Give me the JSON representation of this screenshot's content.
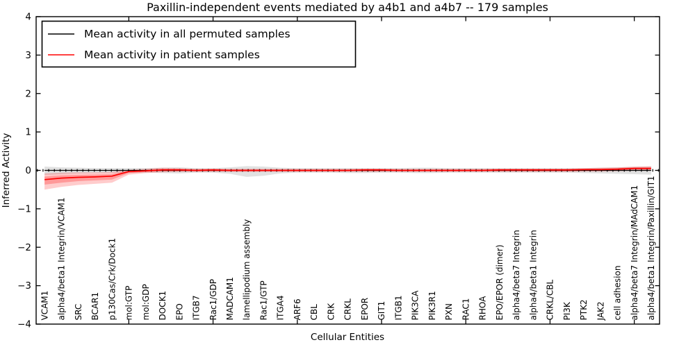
{
  "chart_data": {
    "type": "line",
    "title": "Paxillin-independent events mediated by a4b1 and a4b7 -- 179 samples",
    "xlabel": "Cellular Entities",
    "ylabel": "Inferred Activity",
    "ylim": [
      -4,
      4
    ],
    "yticks": [
      4,
      3,
      2,
      1,
      0,
      -1,
      -2,
      -3,
      -4
    ],
    "grid": false,
    "zero_line": true,
    "legend_position": "upper left",
    "categories": [
      "VCAM1",
      "alpha4/beta1 Integrin/VCAM1",
      "SRC",
      "BCAR1",
      "p130Cas/Crk/Dock1",
      "mol:GTP",
      "mol:GDP",
      "DOCK1",
      "EPO",
      "ITGB7",
      "Rac1/GDP",
      "MADCAM1",
      "lamellipodium assembly",
      "Rac1/GTP",
      "ITGA4",
      "ARF6",
      "CBL",
      "CRK",
      "CRKL",
      "EPOR",
      "GIT1",
      "ITGB1",
      "PIK3CA",
      "PIK3R1",
      "PXN",
      "RAC1",
      "RHOA",
      "EPO/EPOR (dimer)",
      "alpha4/beta7 Integrin",
      "alpha4/beta1 Integrin",
      "CRKL/CBL",
      "PI3K",
      "PTK2",
      "JAK2",
      "cell adhesion",
      "alpha4/beta7 Integrin/MAdCAM1",
      "alpha4/beta1 Integrin/Paxillin/GIT1"
    ],
    "series": [
      {
        "name": "Mean activity in all permuted samples",
        "color": "#000000",
        "values": [
          0,
          0,
          0,
          0,
          0,
          0,
          0,
          0,
          0,
          0,
          0,
          0,
          0,
          0,
          0,
          0,
          0,
          0,
          0,
          0,
          0,
          0,
          0,
          0,
          0,
          0,
          0,
          0,
          0,
          0,
          0,
          0,
          0,
          0,
          0,
          0,
          0
        ]
      },
      {
        "name": "Mean activity in patient samples",
        "color": "#ff0000",
        "values": [
          -0.24,
          -0.2,
          -0.18,
          -0.17,
          -0.15,
          -0.03,
          -0.01,
          0.01,
          0.01,
          0.0,
          0.01,
          0.0,
          0.0,
          0.0,
          0.0,
          0.0,
          0.0,
          0.0,
          0.0,
          0.01,
          0.01,
          0.0,
          0.0,
          0.0,
          0.0,
          0.0,
          0.0,
          0.01,
          0.01,
          0.01,
          0.01,
          0.01,
          0.02,
          0.02,
          0.03,
          0.05,
          0.05
        ]
      }
    ],
    "bands": [
      {
        "name": "permuted-sample-range",
        "color": "#888888",
        "opacity": 0.25,
        "upper": [
          0.1,
          0.08,
          0.07,
          0.06,
          0.06,
          0.06,
          0.06,
          0.07,
          0.08,
          0.06,
          0.06,
          0.08,
          0.11,
          0.1,
          0.07,
          0.06,
          0.06,
          0.06,
          0.06,
          0.06,
          0.06,
          0.06,
          0.07,
          0.07,
          0.06,
          0.06,
          0.06,
          0.06,
          0.06,
          0.06,
          0.06,
          0.06,
          0.06,
          0.07,
          0.08,
          0.09,
          0.1
        ],
        "lower": [
          -0.12,
          -0.1,
          -0.08,
          -0.07,
          -0.07,
          -0.06,
          -0.06,
          -0.07,
          -0.08,
          -0.06,
          -0.06,
          -0.09,
          -0.17,
          -0.14,
          -0.08,
          -0.06,
          -0.06,
          -0.06,
          -0.07,
          -0.07,
          -0.06,
          -0.06,
          -0.07,
          -0.07,
          -0.06,
          -0.06,
          -0.06,
          -0.06,
          -0.06,
          -0.06,
          -0.06,
          -0.06,
          -0.07,
          -0.08,
          -0.09,
          -0.1,
          -0.11
        ]
      },
      {
        "name": "patient-sample-range-outer",
        "color": "#ff0000",
        "opacity": 0.2,
        "upper": [
          -0.08,
          -0.06,
          -0.05,
          -0.05,
          -0.04,
          0.02,
          0.04,
          0.07,
          0.06,
          0.04,
          0.05,
          0.04,
          0.04,
          0.04,
          0.04,
          0.04,
          0.04,
          0.04,
          0.04,
          0.05,
          0.05,
          0.04,
          0.04,
          0.04,
          0.04,
          0.04,
          0.04,
          0.05,
          0.05,
          0.05,
          0.05,
          0.05,
          0.06,
          0.07,
          0.08,
          0.1,
          0.11
        ],
        "lower": [
          -0.5,
          -0.43,
          -0.38,
          -0.35,
          -0.32,
          -0.11,
          -0.07,
          -0.05,
          -0.04,
          -0.04,
          -0.04,
          -0.04,
          -0.04,
          -0.04,
          -0.04,
          -0.04,
          -0.04,
          -0.04,
          -0.04,
          -0.04,
          -0.04,
          -0.04,
          -0.04,
          -0.04,
          -0.04,
          -0.04,
          -0.04,
          -0.04,
          -0.04,
          -0.04,
          -0.04,
          -0.04,
          -0.03,
          -0.03,
          -0.02,
          -0.01,
          -0.01
        ]
      },
      {
        "name": "patient-sample-range-inner",
        "color": "#ff0000",
        "opacity": 0.25,
        "upper": [
          -0.16,
          -0.13,
          -0.12,
          -0.11,
          -0.1,
          -0.01,
          0.02,
          0.04,
          0.04,
          0.02,
          0.03,
          0.02,
          0.02,
          0.02,
          0.02,
          0.02,
          0.02,
          0.02,
          0.02,
          0.03,
          0.03,
          0.02,
          0.02,
          0.02,
          0.02,
          0.02,
          0.02,
          0.03,
          0.03,
          0.03,
          0.03,
          0.03,
          0.04,
          0.05,
          0.06,
          0.08,
          0.08
        ],
        "lower": [
          -0.37,
          -0.32,
          -0.28,
          -0.26,
          -0.24,
          -0.07,
          -0.04,
          -0.02,
          -0.02,
          -0.02,
          -0.02,
          -0.02,
          -0.02,
          -0.02,
          -0.02,
          -0.02,
          -0.02,
          -0.02,
          -0.02,
          -0.02,
          -0.02,
          -0.02,
          -0.02,
          -0.02,
          -0.02,
          -0.02,
          -0.02,
          -0.02,
          -0.02,
          -0.02,
          -0.02,
          -0.02,
          -0.01,
          -0.01,
          0.0,
          0.02,
          0.02
        ]
      }
    ]
  }
}
